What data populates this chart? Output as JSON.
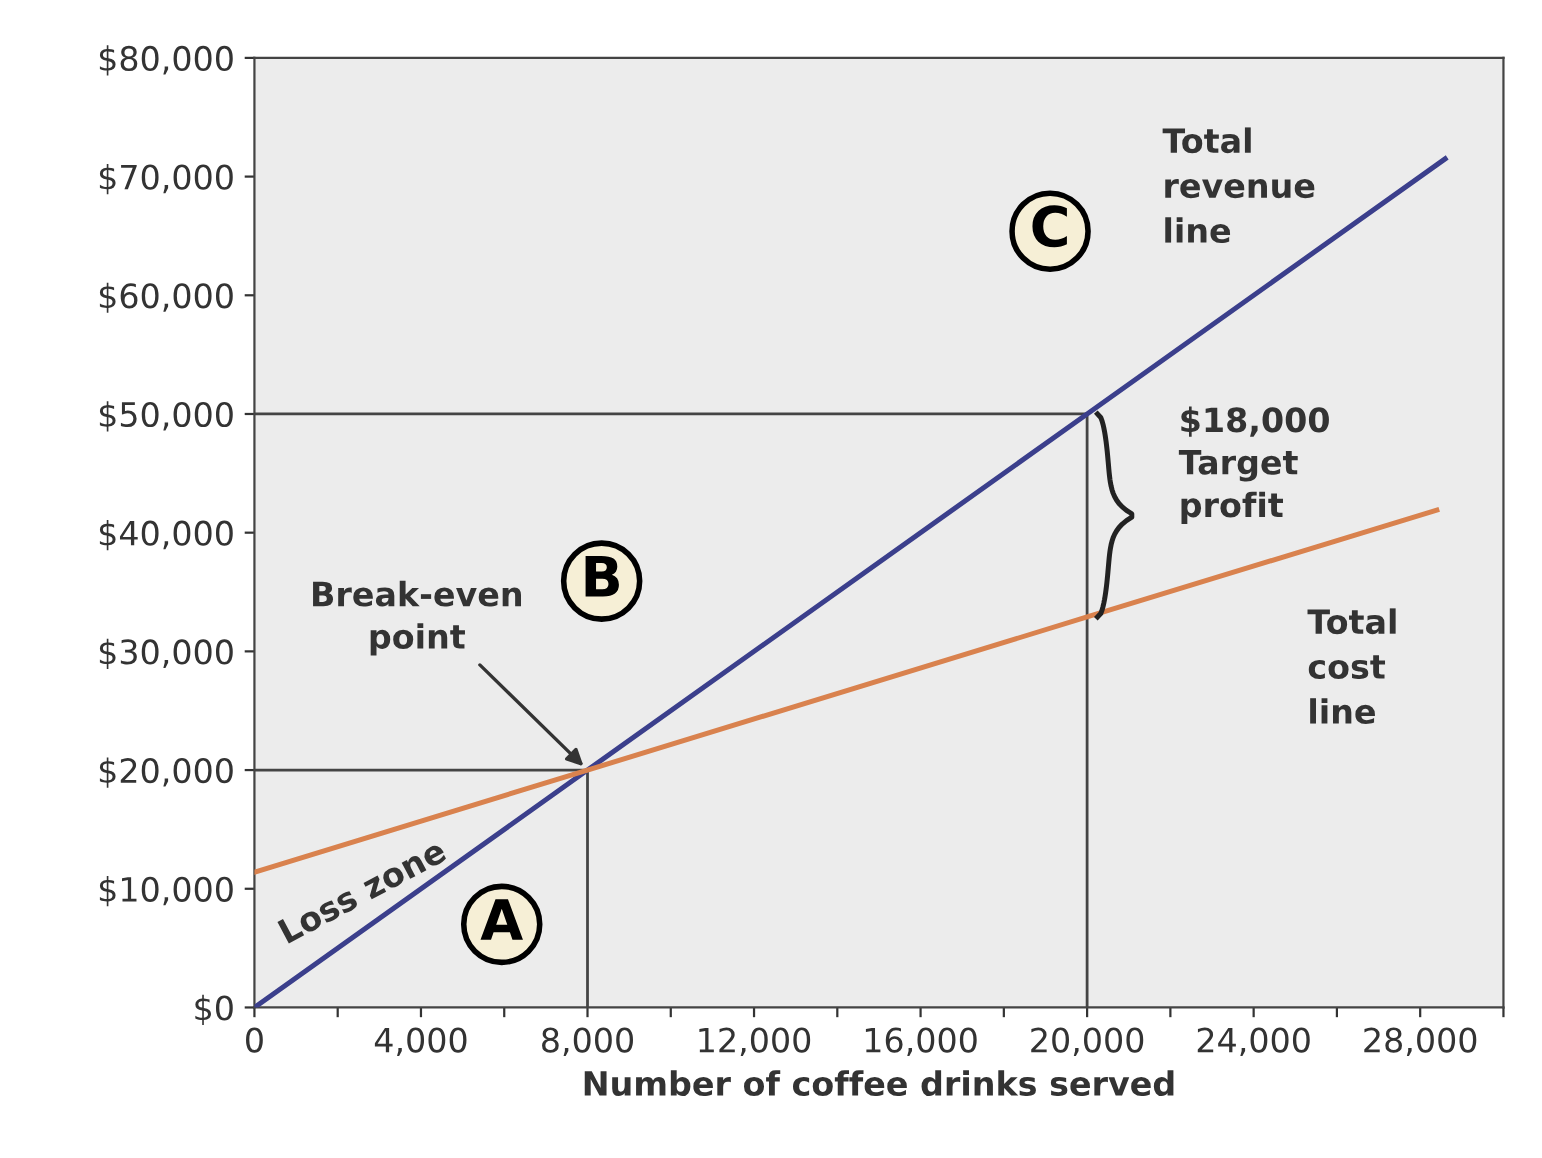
{
  "chart_data": {
    "type": "line",
    "xlabel": "Number of coffee drinks served",
    "series": [
      {
        "color": "#3b3f8c",
        "x": [
          0,
          8000,
          20000,
          28600
        ],
        "values": [
          0,
          20000,
          50000,
          71500
        ]
      },
      {
        "color": "#d9824e",
        "x": [
          0,
          8000,
          20000,
          28400
        ],
        "values": [
          11400,
          20000,
          32900,
          41900
        ]
      }
    ],
    "xlim": [
      0,
      30000
    ],
    "xticks": [
      {
        "value": 0,
        "label": "0"
      },
      {
        "value": 2000,
        "label": null
      },
      {
        "value": 4000,
        "label": "4,000"
      },
      {
        "value": 6000,
        "label": null
      },
      {
        "value": 8000,
        "label": "8,000"
      },
      {
        "value": 10000,
        "label": null
      },
      {
        "value": 12000,
        "label": "12,000"
      },
      {
        "value": 14000,
        "label": null
      },
      {
        "value": 16000,
        "label": "16,000"
      },
      {
        "value": 18000,
        "label": null
      },
      {
        "value": 20000,
        "label": "20,000"
      },
      {
        "value": 22000,
        "label": null
      },
      {
        "value": 24000,
        "label": "24,000"
      },
      {
        "value": 26000,
        "label": null
      },
      {
        "value": 28000,
        "label": "28,000"
      },
      {
        "value": 30000,
        "label": null
      }
    ],
    "ylim": [
      0,
      80000
    ],
    "yticks": [
      {
        "value": 0,
        "label": "$0"
      },
      {
        "value": 10000,
        "label": "$10,000"
      },
      {
        "value": 20000,
        "label": "$20,000"
      },
      {
        "value": 30000,
        "label": "$30,000"
      },
      {
        "value": 40000,
        "label": "$40,000"
      },
      {
        "value": 50000,
        "label": "$50,000"
      },
      {
        "value": 60000,
        "label": "$60,000"
      },
      {
        "value": 70000,
        "label": "$70,000"
      },
      {
        "value": 80000,
        "label": "$80,000"
      }
    ],
    "ref_lines": [
      {
        "axis": "x",
        "value": 8000,
        "color": "#444444"
      },
      {
        "axis": "y",
        "value": 20000,
        "color": "#444444"
      },
      {
        "axis": "x",
        "value": 20000,
        "color": "#444444"
      },
      {
        "axis": "y",
        "value": 50000,
        "color": "#444444"
      }
    ],
    "annotations": [
      "Total\nrevenue\nline",
      "Total\ncost\nline",
      "Loss zone",
      {
        "text": "Break-even\npoint",
        "x": 8000,
        "y": 20000
      },
      {
        "text": "$18,000\nTarget\nprofit",
        "x": 20000,
        "y": 50000
      },
      "A",
      "B",
      "C"
    ]
  }
}
